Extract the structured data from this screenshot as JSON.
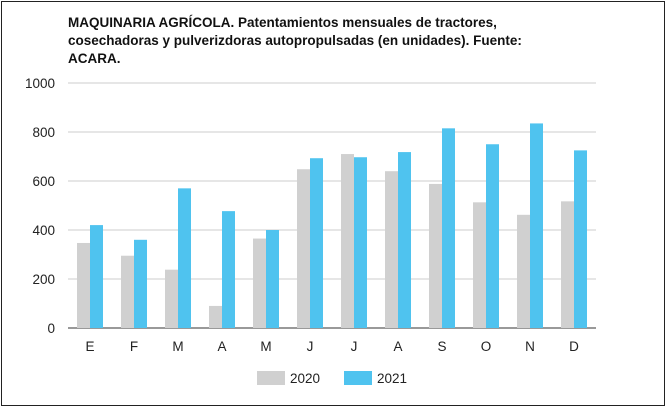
{
  "chart_data": {
    "type": "bar",
    "title": "MAQUINARIA AGRÍCOLA. Patentamientos mensuales de tractores, cosechadoras y pulverizdoras autopropulsadas (en unidades). Fuente: ACARA.",
    "categories": [
      "E",
      "F",
      "M",
      "A",
      "M",
      "J",
      "J",
      "A",
      "S",
      "O",
      "N",
      "D"
    ],
    "series": [
      {
        "name": "2020",
        "color": "#d0d0d0",
        "values": [
          347,
          295,
          238,
          90,
          365,
          648,
          710,
          640,
          588,
          513,
          462,
          517
        ]
      },
      {
        "name": "2021",
        "color": "#4fc3ef",
        "values": [
          420,
          360,
          570,
          477,
          400,
          693,
          697,
          718,
          815,
          750,
          835,
          725
        ]
      }
    ],
    "ylim": [
      0,
      1000
    ],
    "yticks": [
      "0",
      "200",
      "400",
      "600",
      "800",
      "1000"
    ],
    "grid": true,
    "legend_position": "bottom-center"
  }
}
